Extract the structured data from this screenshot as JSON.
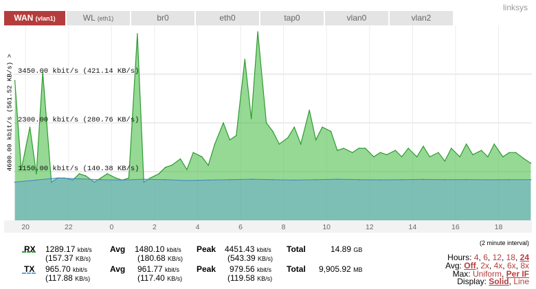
{
  "brand": "linksys",
  "tabs": [
    {
      "label": "WAN",
      "sub": "(vlan1)",
      "active": true
    },
    {
      "label": "WL",
      "sub": "(eth1)",
      "active": false
    },
    {
      "label": "br0",
      "sub": "",
      "active": false
    },
    {
      "label": "eth0",
      "sub": "",
      "active": false
    },
    {
      "label": "tap0",
      "sub": "",
      "active": false
    },
    {
      "label": "vlan0",
      "sub": "",
      "active": false
    },
    {
      "label": "vlan2",
      "sub": "",
      "active": false
    }
  ],
  "chart_data": {
    "type": "area",
    "ylabel": "4600.00 kbit/s (561.52 KB/s) >",
    "ylim": [
      0,
      4600
    ],
    "ytick_labels": [
      {
        "value": 3450,
        "label": "3450.00 kbit/s (421.14 KB/s)"
      },
      {
        "value": 2300,
        "label": "2300.00 kbit/s (280.76 KB/s)"
      },
      {
        "value": 1150,
        "label": "1150.00 kbit/s (140.38 KB/s)"
      }
    ],
    "xtick_labels": [
      "20",
      "22",
      "0",
      "2",
      "4",
      "6",
      "8",
      "10",
      "12",
      "14",
      "16",
      "18"
    ],
    "x_hours": [
      20,
      22,
      24,
      26,
      28,
      30,
      32,
      34,
      36,
      38,
      40,
      42
    ],
    "xlim": [
      19.45,
      43.55
    ],
    "grid": true,
    "series": [
      {
        "color": "#4fbf4f",
        "x": [
          19.5,
          19.8,
          20.2,
          20.5,
          20.8,
          21.2,
          21.5,
          21.8,
          22.2,
          22.5,
          22.8,
          23.2,
          23.5,
          23.8,
          24.2,
          24.5,
          24.8,
          25.2,
          25.5,
          25.8,
          26.2,
          26.5,
          26.8,
          27.2,
          27.5,
          27.8,
          28.2,
          28.5,
          28.8,
          29.2,
          29.5,
          29.8,
          30.2,
          30.5,
          30.8,
          31.2,
          31.5,
          31.8,
          32.2,
          32.5,
          32.8,
          33.2,
          33.5,
          33.8,
          34.2,
          34.5,
          34.8,
          35.2,
          35.5,
          35.8,
          36.2,
          36.5,
          36.8,
          37.2,
          37.5,
          37.8,
          38.2,
          38.5,
          38.8,
          39.2,
          39.5,
          39.8,
          40.2,
          40.5,
          40.8,
          41.2,
          41.5,
          41.8,
          42.2,
          42.5,
          42.8,
          43.2,
          43.5
        ],
        "values": [
          3300,
          1200,
          2200,
          1100,
          3500,
          900,
          1000,
          1000,
          950,
          1100,
          1050,
          900,
          1000,
          1100,
          1000,
          950,
          1000,
          4400,
          900,
          1000,
          1100,
          1250,
          1300,
          1450,
          1200,
          1600,
          1500,
          1300,
          1800,
          2300,
          1900,
          2000,
          3800,
          2400,
          4450,
          2300,
          2100,
          1800,
          1950,
          2200,
          1800,
          2600,
          1900,
          2200,
          2100,
          1650,
          1700,
          1600,
          1700,
          1700,
          1500,
          1600,
          1550,
          1650,
          1500,
          1700,
          1500,
          1750,
          1500,
          1600,
          1400,
          1700,
          1500,
          1800,
          1550,
          1650,
          1500,
          1800,
          1500,
          1600,
          1600,
          1450,
          1350
        ],
        "peak": 4451.43
      },
      {
        "color": "#5f9fd9",
        "x": [
          19.5,
          20.5,
          21.5,
          22.5,
          23.5,
          24.5,
          25.5,
          26.5,
          27.5,
          28.5,
          29.5,
          30.5,
          31.5,
          32.5,
          33.5,
          34.5,
          35.5,
          36.5,
          37.5,
          38.5,
          39.5,
          40.5,
          41.5,
          42.5,
          43.5
        ],
        "values": [
          900,
          950,
          1000,
          980,
          960,
          950,
          970,
          960,
          940,
          950,
          960,
          970,
          960,
          950,
          960,
          970,
          960,
          955,
          960,
          965,
          960,
          962,
          958,
          961,
          960
        ],
        "peak": 979.56
      }
    ]
  },
  "interval": "(2 minute interval)",
  "stats": {
    "rx": {
      "label": "RX",
      "now_kbit": "1289.17",
      "now_kb": "(157.37",
      "kbit_unit": "kbit/s",
      "kb_unit": "KB/s)",
      "avg_label": "Avg",
      "avg_kbit": "1480.10",
      "avg_kb": "(180.68",
      "peak_label": "Peak",
      "peak_kbit": "4451.43",
      "peak_kb": "(543.39",
      "total_label": "Total",
      "total": "14.89",
      "total_unit": "GB"
    },
    "tx": {
      "label": "TX",
      "now_kbit": "965.70",
      "now_kb": "(117.88",
      "kbit_unit": "kbit/s",
      "kb_unit": "KB/s)",
      "avg_label": "Avg",
      "avg_kbit": "961.77",
      "avg_kb": "(117.40",
      "peak_label": "Peak",
      "peak_kbit": "979.56",
      "peak_kb": "(119.58",
      "total_label": "Total",
      "total": "9,905.92",
      "total_unit": "MB"
    }
  },
  "options": {
    "hours": {
      "label": "Hours:",
      "opts": [
        "4",
        "6",
        "12",
        "18",
        "24"
      ],
      "selected": "24"
    },
    "avg": {
      "label": "Avg:",
      "opts": [
        "Off",
        "2x",
        "4x",
        "6x",
        "8x"
      ],
      "selected": "Off"
    },
    "max": {
      "label": "Max:",
      "opts": [
        "Uniform",
        "Per IF"
      ],
      "selected": "Per IF"
    },
    "display": {
      "label": "Display:",
      "opts": [
        "Solid",
        "Line"
      ],
      "selected": "Solid"
    }
  },
  "colors": {
    "accent": "#b53c3c",
    "rx": "#2e9a2e",
    "tx": "#5f9fd9"
  }
}
